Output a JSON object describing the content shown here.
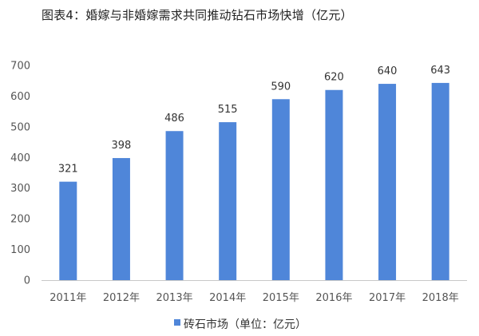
{
  "chart_data": {
    "type": "bar",
    "title": "图表4：婚嫁与非婚嫁需求共同推动钻石市场快增（亿元）",
    "categories": [
      "2011年",
      "2012年",
      "2013年",
      "2014年",
      "2015年",
      "2016年",
      "2017年",
      "2018年"
    ],
    "series": [
      {
        "name": "砖石市场（单位：亿元）",
        "values": [
          321,
          398,
          486,
          515,
          590,
          620,
          640,
          643
        ]
      }
    ],
    "ylim": [
      0,
      700
    ],
    "yticks": [
      0,
      100,
      200,
      300,
      400,
      500,
      600,
      700
    ],
    "grid": false,
    "legend": "bottom-center",
    "bar_color": "#4f86d9"
  }
}
